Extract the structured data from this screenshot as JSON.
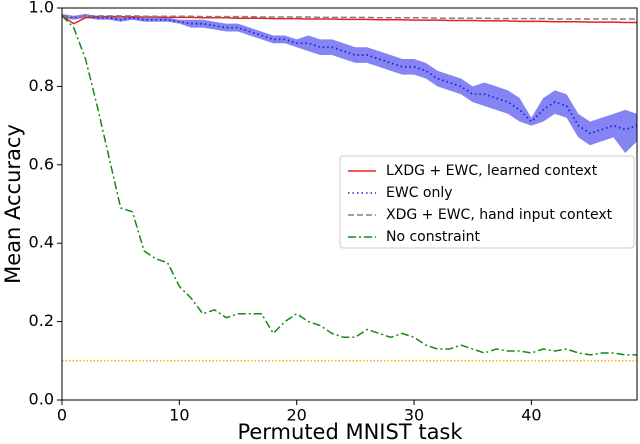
{
  "chart_data": {
    "type": "line",
    "x_label": "Permuted MNIST task",
    "y_label": "Mean Accuracy",
    "x": [
      0,
      1,
      2,
      3,
      4,
      5,
      6,
      7,
      8,
      9,
      10,
      11,
      12,
      13,
      14,
      15,
      16,
      17,
      18,
      19,
      20,
      21,
      22,
      23,
      24,
      25,
      26,
      27,
      28,
      29,
      30,
      31,
      32,
      33,
      34,
      35,
      36,
      37,
      38,
      39,
      40,
      41,
      42,
      43,
      44,
      45,
      46,
      47,
      48,
      49
    ],
    "xlim": [
      0,
      49
    ],
    "ylim": [
      0,
      1
    ],
    "xticks": [
      0,
      10,
      20,
      30,
      40
    ],
    "yticks": [
      {
        "value": 0,
        "label": "0.0"
      },
      {
        "value": 0.2,
        "label": "0.2"
      },
      {
        "value": 0.4,
        "label": "0.4"
      },
      {
        "value": 0.6,
        "label": "0.6"
      },
      {
        "value": 0.8,
        "label": "0.8"
      },
      {
        "value": 1,
        "label": "1.0"
      }
    ],
    "hline": {
      "value": 0.1,
      "color": "#f5b800"
    },
    "legend": "right",
    "series": [
      {
        "name": "LXDG + EWC, learned context",
        "color": "#e8231f",
        "linestyle": "solid",
        "values": [
          0.98,
          0.96,
          0.975,
          0.978,
          0.978,
          0.978,
          0.977,
          0.977,
          0.977,
          0.976,
          0.976,
          0.976,
          0.975,
          0.975,
          0.975,
          0.974,
          0.974,
          0.974,
          0.973,
          0.973,
          0.973,
          0.972,
          0.972,
          0.972,
          0.971,
          0.971,
          0.971,
          0.97,
          0.97,
          0.97,
          0.969,
          0.969,
          0.969,
          0.968,
          0.968,
          0.968,
          0.967,
          0.967,
          0.967,
          0.966,
          0.966,
          0.966,
          0.965,
          0.965,
          0.965,
          0.964,
          0.964,
          0.964,
          0.963,
          0.963
        ]
      },
      {
        "name": "EWC only",
        "color": "#1f1fd6",
        "band_color": "#6f6ff2",
        "linestyle": "dotted",
        "values": [
          0.98,
          0.975,
          0.98,
          0.975,
          0.975,
          0.97,
          0.975,
          0.97,
          0.97,
          0.97,
          0.965,
          0.96,
          0.96,
          0.955,
          0.95,
          0.95,
          0.94,
          0.93,
          0.92,
          0.92,
          0.91,
          0.91,
          0.9,
          0.9,
          0.89,
          0.88,
          0.88,
          0.87,
          0.86,
          0.85,
          0.85,
          0.84,
          0.82,
          0.81,
          0.8,
          0.78,
          0.78,
          0.77,
          0.76,
          0.74,
          0.71,
          0.74,
          0.76,
          0.75,
          0.7,
          0.68,
          0.69,
          0.7,
          0.69,
          0.7
        ],
        "lower": [
          0.975,
          0.97,
          0.975,
          0.97,
          0.97,
          0.965,
          0.97,
          0.965,
          0.965,
          0.965,
          0.96,
          0.95,
          0.95,
          0.945,
          0.94,
          0.94,
          0.93,
          0.92,
          0.91,
          0.91,
          0.9,
          0.89,
          0.88,
          0.88,
          0.87,
          0.86,
          0.86,
          0.85,
          0.84,
          0.83,
          0.83,
          0.82,
          0.8,
          0.79,
          0.78,
          0.76,
          0.75,
          0.74,
          0.73,
          0.71,
          0.7,
          0.71,
          0.73,
          0.72,
          0.67,
          0.65,
          0.66,
          0.67,
          0.63,
          0.66
        ],
        "upper": [
          0.985,
          0.98,
          0.985,
          0.98,
          0.98,
          0.975,
          0.98,
          0.975,
          0.975,
          0.975,
          0.97,
          0.97,
          0.97,
          0.965,
          0.96,
          0.96,
          0.95,
          0.94,
          0.93,
          0.93,
          0.92,
          0.93,
          0.92,
          0.92,
          0.91,
          0.9,
          0.9,
          0.89,
          0.88,
          0.87,
          0.87,
          0.86,
          0.84,
          0.83,
          0.82,
          0.8,
          0.81,
          0.8,
          0.79,
          0.77,
          0.72,
          0.77,
          0.79,
          0.78,
          0.73,
          0.71,
          0.72,
          0.73,
          0.74,
          0.73
        ]
      },
      {
        "name": "XDG + EWC, hand input context",
        "color": "#808080",
        "linestyle": "dashed",
        "values": [
          0.98,
          0.978,
          0.98,
          0.98,
          0.98,
          0.98,
          0.98,
          0.979,
          0.979,
          0.979,
          0.979,
          0.979,
          0.978,
          0.978,
          0.978,
          0.978,
          0.978,
          0.977,
          0.977,
          0.977,
          0.977,
          0.977,
          0.976,
          0.976,
          0.976,
          0.976,
          0.976,
          0.975,
          0.975,
          0.975,
          0.975,
          0.975,
          0.974,
          0.974,
          0.974,
          0.974,
          0.974,
          0.973,
          0.973,
          0.973,
          0.973,
          0.973,
          0.972,
          0.972,
          0.972,
          0.972,
          0.972,
          0.972,
          0.972,
          0.972
        ]
      },
      {
        "name": "No constraint",
        "color": "#138a13",
        "linestyle": "dashdot",
        "values": [
          0.98,
          0.95,
          0.87,
          0.75,
          0.62,
          0.49,
          0.48,
          0.38,
          0.36,
          0.35,
          0.29,
          0.26,
          0.22,
          0.23,
          0.21,
          0.22,
          0.22,
          0.22,
          0.17,
          0.2,
          0.22,
          0.2,
          0.19,
          0.17,
          0.16,
          0.16,
          0.18,
          0.17,
          0.16,
          0.17,
          0.16,
          0.14,
          0.13,
          0.13,
          0.14,
          0.13,
          0.12,
          0.13,
          0.125,
          0.125,
          0.12,
          0.13,
          0.125,
          0.13,
          0.12,
          0.115,
          0.12,
          0.12,
          0.115,
          0.115
        ]
      }
    ]
  }
}
